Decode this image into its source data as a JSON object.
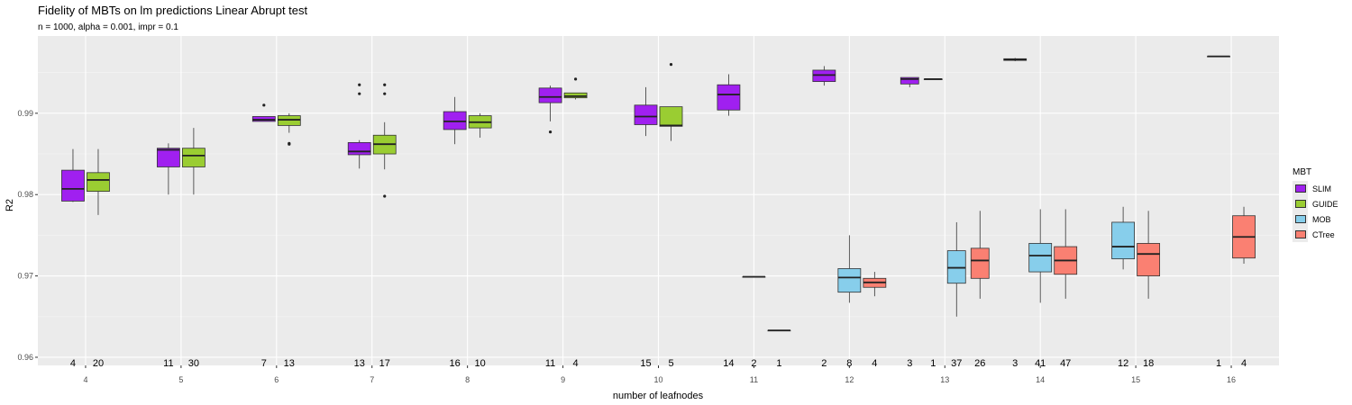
{
  "chart_data": {
    "type": "box",
    "title": "Fidelity of MBTs on lm predictions Linear Abrupt test",
    "subtitle": "n = 1000, alpha = 0.001, impr = 0.1",
    "xlabel": "number of leafnodes",
    "ylabel": "R2",
    "ylim": [
      0.959,
      0.9995
    ],
    "yticks": [
      "0.96",
      "0.97",
      "0.98",
      "0.99"
    ],
    "ytick_values": [
      0.96,
      0.97,
      0.98,
      0.99
    ],
    "categories": [
      "4",
      "5",
      "6",
      "7",
      "8",
      "9",
      "10",
      "11",
      "12",
      "13",
      "14",
      "15",
      "16"
    ],
    "legend": {
      "title": "MBT",
      "position": "right",
      "entries": [
        "SLIM",
        "GUIDE",
        "MOB",
        "CTree"
      ]
    },
    "colors": {
      "SLIM": "#a020f0",
      "GUIDE": "#9acd32",
      "MOB": "#87ceeb",
      "CTree": "#fa8072",
      "panel": "#ebebeb",
      "grid": "#ffffff"
    },
    "boxes": [
      {
        "category": "4",
        "series": "SLIM",
        "count": "4",
        "whisker_low": 0.9791,
        "q1": 0.9792,
        "median": 0.9807,
        "q3": 0.983,
        "whisker_high": 0.9856,
        "outliers": []
      },
      {
        "category": "4",
        "series": "GUIDE",
        "count": "20",
        "whisker_low": 0.9775,
        "q1": 0.9804,
        "median": 0.9818,
        "q3": 0.9827,
        "whisker_high": 0.9856,
        "outliers": []
      },
      {
        "category": "5",
        "series": "SLIM",
        "count": "11",
        "whisker_low": 0.98,
        "q1": 0.9834,
        "median": 0.9855,
        "q3": 0.9857,
        "whisker_high": 0.9863,
        "outliers": []
      },
      {
        "category": "5",
        "series": "GUIDE",
        "count": "30",
        "whisker_low": 0.98,
        "q1": 0.9834,
        "median": 0.9848,
        "q3": 0.9857,
        "whisker_high": 0.9882,
        "outliers": []
      },
      {
        "category": "6",
        "series": "SLIM",
        "count": "7",
        "whisker_low": 0.989,
        "q1": 0.989,
        "median": 0.9892,
        "q3": 0.9896,
        "whisker_high": 0.9896,
        "outliers": [
          0.991
        ]
      },
      {
        "category": "6",
        "series": "GUIDE",
        "count": "13",
        "whisker_low": 0.9876,
        "q1": 0.9885,
        "median": 0.9892,
        "q3": 0.9897,
        "whisker_high": 0.99,
        "outliers": [
          0.9863,
          0.9862
        ]
      },
      {
        "category": "7",
        "series": "SLIM",
        "count": "13",
        "whisker_low": 0.9832,
        "q1": 0.9849,
        "median": 0.9853,
        "q3": 0.9864,
        "whisker_high": 0.9867,
        "outliers": [
          0.9935,
          0.9924
        ]
      },
      {
        "category": "7",
        "series": "GUIDE",
        "count": "17",
        "whisker_low": 0.9831,
        "q1": 0.985,
        "median": 0.9862,
        "q3": 0.9873,
        "whisker_high": 0.9889,
        "outliers": [
          0.9935,
          0.9924,
          0.9798
        ]
      },
      {
        "category": "8",
        "series": "SLIM",
        "count": "16",
        "whisker_low": 0.9862,
        "q1": 0.988,
        "median": 0.989,
        "q3": 0.9902,
        "whisker_high": 0.992,
        "outliers": []
      },
      {
        "category": "8",
        "series": "GUIDE",
        "count": "10",
        "whisker_low": 0.987,
        "q1": 0.9882,
        "median": 0.9889,
        "q3": 0.9897,
        "whisker_high": 0.99,
        "outliers": []
      },
      {
        "category": "9",
        "series": "SLIM",
        "count": "11",
        "whisker_low": 0.989,
        "q1": 0.9913,
        "median": 0.992,
        "q3": 0.9931,
        "whisker_high": 0.9934,
        "outliers": [
          0.9877
        ]
      },
      {
        "category": "9",
        "series": "GUIDE",
        "count": "4",
        "whisker_low": 0.9917,
        "q1": 0.9919,
        "median": 0.9921,
        "q3": 0.9925,
        "whisker_high": 0.9925,
        "outliers": [
          0.9942
        ]
      },
      {
        "category": "10",
        "series": "SLIM",
        "count": "15",
        "whisker_low": 0.9872,
        "q1": 0.9886,
        "median": 0.9896,
        "q3": 0.991,
        "whisker_high": 0.9932,
        "outliers": []
      },
      {
        "category": "10",
        "series": "GUIDE",
        "count": "5",
        "whisker_low": 0.9866,
        "q1": 0.9884,
        "median": 0.9885,
        "q3": 0.9908,
        "whisker_high": 0.9908,
        "outliers": [
          0.996
        ]
      },
      {
        "category": "11",
        "series": "SLIM",
        "count": "14",
        "whisker_low": 0.9897,
        "q1": 0.9904,
        "median": 0.9923,
        "q3": 0.9935,
        "whisker_high": 0.9948,
        "outliers": []
      },
      {
        "category": "11",
        "series": "MOB",
        "count": "2",
        "whisker_low": 0.9699,
        "q1": 0.9699,
        "median": 0.9699,
        "q3": 0.9699,
        "whisker_high": 0.9699,
        "outliers": []
      },
      {
        "category": "11",
        "series": "CTree",
        "count": "1",
        "whisker_low": 0.9633,
        "q1": 0.9633,
        "median": 0.9633,
        "q3": 0.9633,
        "whisker_high": 0.9633,
        "outliers": []
      },
      {
        "category": "12",
        "series": "SLIM",
        "count": "2",
        "whisker_low": 0.9934,
        "q1": 0.9939,
        "median": 0.9947,
        "q3": 0.9953,
        "whisker_high": 0.9958,
        "outliers": []
      },
      {
        "category": "12",
        "series": "MOB",
        "count": "8",
        "whisker_low": 0.9667,
        "q1": 0.968,
        "median": 0.9698,
        "q3": 0.9709,
        "whisker_high": 0.975,
        "outliers": []
      },
      {
        "category": "12",
        "series": "CTree",
        "count": "4",
        "whisker_low": 0.9675,
        "q1": 0.9686,
        "median": 0.9692,
        "q3": 0.9697,
        "whisker_high": 0.9705,
        "outliers": []
      },
      {
        "category": "13",
        "series": "SLIM",
        "count": "3",
        "whisker_low": 0.9932,
        "q1": 0.9936,
        "median": 0.9942,
        "q3": 0.9944,
        "whisker_high": 0.9944,
        "outliers": []
      },
      {
        "category": "13",
        "series": "MOB",
        "count": "1",
        "whisker_low": 0.9942,
        "q1": 0.9942,
        "median": 0.9942,
        "q3": 0.9942,
        "whisker_high": 0.9942,
        "outliers": []
      },
      {
        "category": "13",
        "series": "MOB",
        "count": "37",
        "whisker_low": 0.965,
        "q1": 0.9691,
        "median": 0.971,
        "q3": 0.9731,
        "whisker_high": 0.9766,
        "outliers": []
      },
      {
        "category": "13",
        "series": "CTree",
        "count": "26",
        "whisker_low": 0.9672,
        "q1": 0.9697,
        "median": 0.9719,
        "q3": 0.9734,
        "whisker_high": 0.978,
        "outliers": []
      },
      {
        "category": "14",
        "series": "SLIM",
        "count": "3",
        "whisker_low": 0.9964,
        "q1": 0.9965,
        "median": 0.9966,
        "q3": 0.9967,
        "whisker_high": 0.9968,
        "outliers": []
      },
      {
        "category": "14",
        "series": "MOB",
        "count": "41",
        "whisker_low": 0.9667,
        "q1": 0.9705,
        "median": 0.9725,
        "q3": 0.974,
        "whisker_high": 0.9782,
        "outliers": []
      },
      {
        "category": "14",
        "series": "CTree",
        "count": "47",
        "whisker_low": 0.9672,
        "q1": 0.9702,
        "median": 0.9719,
        "q3": 0.9736,
        "whisker_high": 0.9782,
        "outliers": []
      },
      {
        "category": "15",
        "series": "MOB",
        "count": "12",
        "whisker_low": 0.9708,
        "q1": 0.9721,
        "median": 0.9736,
        "q3": 0.9766,
        "whisker_high": 0.9785,
        "outliers": []
      },
      {
        "category": "15",
        "series": "CTree",
        "count": "18",
        "whisker_low": 0.9672,
        "q1": 0.97,
        "median": 0.9727,
        "q3": 0.974,
        "whisker_high": 0.978,
        "outliers": []
      },
      {
        "category": "16",
        "series": "SLIM",
        "count": "1",
        "whisker_low": 0.997,
        "q1": 0.997,
        "median": 0.997,
        "q3": 0.997,
        "whisker_high": 0.997,
        "outliers": []
      },
      {
        "category": "16",
        "series": "CTree",
        "count": "4",
        "whisker_low": 0.9715,
        "q1": 0.9722,
        "median": 0.9748,
        "q3": 0.9774,
        "whisker_high": 0.9785,
        "outliers": []
      }
    ]
  }
}
